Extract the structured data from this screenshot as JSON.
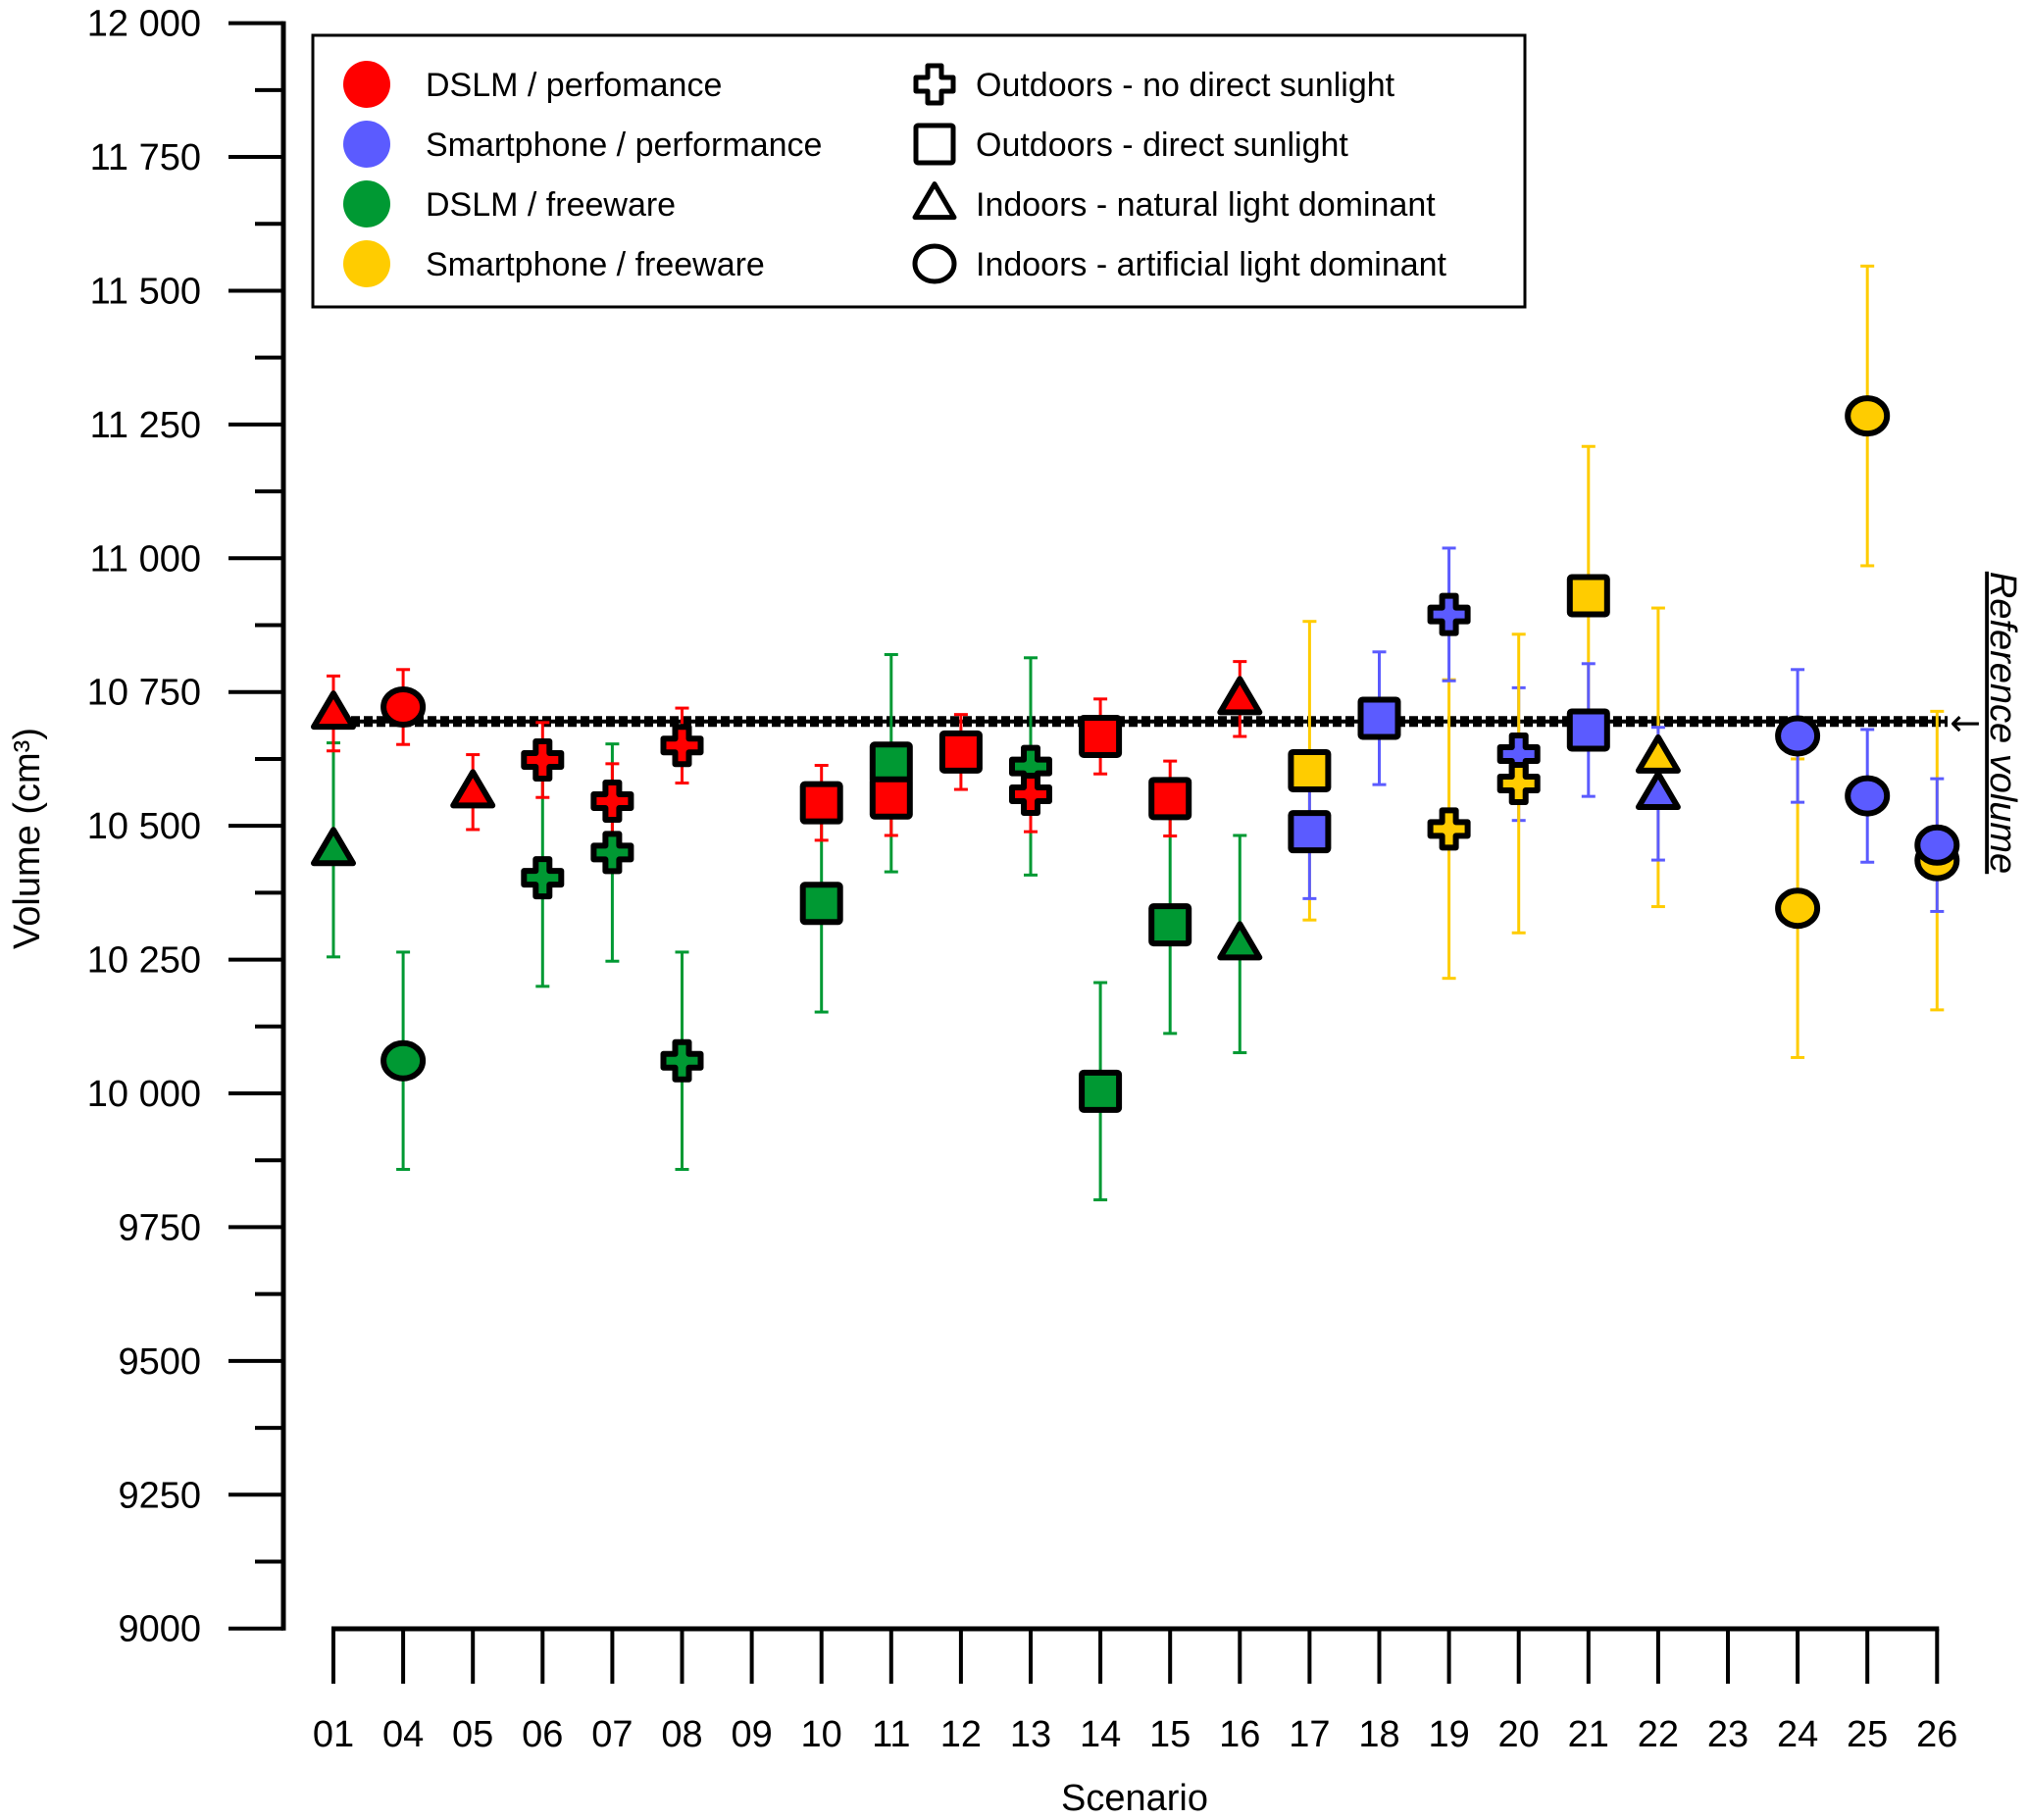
{
  "chart_data": {
    "type": "scatter",
    "subtype": "categorical scatter with error bars",
    "title": "",
    "xlabel": "Scenario",
    "ylabel": "Volume (cm³)",
    "ylim": [
      9000,
      12000
    ],
    "y_major_step": 250,
    "y_minor_step": 125,
    "grid": false,
    "categories": [
      "01",
      "04",
      "05",
      "06",
      "07",
      "08",
      "09",
      "10",
      "11",
      "12",
      "13",
      "14",
      "15",
      "16",
      "17",
      "18",
      "19",
      "20",
      "21",
      "22",
      "23",
      "24",
      "25",
      "26"
    ],
    "y_ticks": [
      {
        "value": 12000,
        "label": "12 000"
      },
      {
        "value": 11750,
        "label": "11 750"
      },
      {
        "value": 11500,
        "label": "11 500"
      },
      {
        "value": 11250,
        "label": "11 250"
      },
      {
        "value": 11000,
        "label": "11 000"
      },
      {
        "value": 10750,
        "label": "10 750"
      },
      {
        "value": 10500,
        "label": "10 500"
      },
      {
        "value": 10250,
        "label": "10 250"
      },
      {
        "value": 10000,
        "label": "10 000"
      },
      {
        "value": 9750,
        "label": "9750"
      },
      {
        "value": 9500,
        "label": "9500"
      },
      {
        "value": 9250,
        "label": "9250"
      },
      {
        "value": 9000,
        "label": "9000"
      }
    ],
    "reference": {
      "value": 10695,
      "label": "Reference volume",
      "arrow": "←"
    },
    "groups": [
      {
        "id": "dslm_perf",
        "label": "DSLM / perfomance",
        "color": "#FF0000"
      },
      {
        "id": "smart_perf",
        "label": "Smartphone / performance",
        "color": "#5B5BFF"
      },
      {
        "id": "dslm_free",
        "label": "DSLM / freeware",
        "color": "#009933"
      },
      {
        "id": "smart_free",
        "label": "Smartphone / freeware",
        "color": "#FFCC00"
      }
    ],
    "conditions": [
      {
        "id": "cross",
        "label": "Outdoors - no direct sunlight"
      },
      {
        "id": "square",
        "label": "Outdoors - direct sunlight"
      },
      {
        "id": "triangle",
        "label": "Indoors - natural light dominant"
      },
      {
        "id": "circle",
        "label": "Indoors - artificial light dominant"
      }
    ],
    "legend_position": "top-left",
    "points": [
      {
        "scenario": "01",
        "group": "dslm_free",
        "shape": "triangle",
        "value": 10455,
        "error": 200
      },
      {
        "scenario": "01",
        "group": "dslm_perf",
        "shape": "triangle",
        "value": 10710,
        "error": 70
      },
      {
        "scenario": "04",
        "group": "dslm_free",
        "shape": "circle",
        "value": 10061,
        "error": 203
      },
      {
        "scenario": "04",
        "group": "dslm_perf",
        "shape": "circle",
        "value": 10722,
        "error": 70
      },
      {
        "scenario": "05",
        "group": "dslm_perf",
        "shape": "triangle",
        "value": 10563,
        "error": 70
      },
      {
        "scenario": "06",
        "group": "dslm_free",
        "shape": "cross",
        "value": 10403,
        "error": 203
      },
      {
        "scenario": "06",
        "group": "dslm_perf",
        "shape": "cross",
        "value": 10623,
        "error": 70
      },
      {
        "scenario": "07",
        "group": "dslm_free",
        "shape": "cross",
        "value": 10450,
        "error": 203
      },
      {
        "scenario": "07",
        "group": "dslm_perf",
        "shape": "cross",
        "value": 10546,
        "error": 70
      },
      {
        "scenario": "08",
        "group": "dslm_free",
        "shape": "cross",
        "value": 10061,
        "error": 203
      },
      {
        "scenario": "08",
        "group": "dslm_perf",
        "shape": "cross",
        "value": 10650,
        "error": 70
      },
      {
        "scenario": "10",
        "group": "dslm_free",
        "shape": "square",
        "value": 10355,
        "error": 203
      },
      {
        "scenario": "10",
        "group": "dslm_perf",
        "shape": "square",
        "value": 10543,
        "error": 70
      },
      {
        "scenario": "11",
        "group": "dslm_free",
        "shape": "square",
        "value": 10617,
        "error": 203
      },
      {
        "scenario": "11",
        "group": "dslm_perf",
        "shape": "square",
        "value": 10552,
        "error": 70
      },
      {
        "scenario": "12",
        "group": "dslm_perf",
        "shape": "square",
        "value": 10638,
        "error": 70
      },
      {
        "scenario": "13",
        "group": "dslm_free",
        "shape": "cross",
        "value": 10611,
        "error": 203
      },
      {
        "scenario": "13",
        "group": "dslm_perf",
        "shape": "cross",
        "value": 10559,
        "error": 70
      },
      {
        "scenario": "14",
        "group": "dslm_free",
        "shape": "square",
        "value": 10004,
        "error": 203
      },
      {
        "scenario": "14",
        "group": "dslm_perf",
        "shape": "square",
        "value": 10667,
        "error": 70
      },
      {
        "scenario": "15",
        "group": "dslm_free",
        "shape": "square",
        "value": 10315,
        "error": 203
      },
      {
        "scenario": "15",
        "group": "dslm_perf",
        "shape": "square",
        "value": 10551,
        "error": 70
      },
      {
        "scenario": "16",
        "group": "dslm_free",
        "shape": "triangle",
        "value": 10279,
        "error": 203
      },
      {
        "scenario": "16",
        "group": "dslm_perf",
        "shape": "triangle",
        "value": 10737,
        "error": 70
      },
      {
        "scenario": "17",
        "group": "smart_free",
        "shape": "square",
        "value": 10603,
        "error": 279
      },
      {
        "scenario": "17",
        "group": "smart_perf",
        "shape": "square",
        "value": 10489,
        "error": 125
      },
      {
        "scenario": "18",
        "group": "smart_perf",
        "shape": "square",
        "value": 10701,
        "error": 124
      },
      {
        "scenario": "19",
        "group": "smart_free",
        "shape": "cross",
        "value": 10494,
        "error": 279
      },
      {
        "scenario": "19",
        "group": "smart_perf",
        "shape": "cross",
        "value": 10895,
        "error": 124
      },
      {
        "scenario": "20",
        "group": "smart_perf",
        "shape": "cross",
        "value": 10634,
        "error": 124
      },
      {
        "scenario": "20",
        "group": "smart_free",
        "shape": "cross",
        "value": 10579,
        "error": 279
      },
      {
        "scenario": "21",
        "group": "smart_free",
        "shape": "square",
        "value": 10930,
        "error": 279
      },
      {
        "scenario": "21",
        "group": "smart_perf",
        "shape": "square",
        "value": 10679,
        "error": 124
      },
      {
        "scenario": "22",
        "group": "smart_free",
        "shape": "triangle",
        "value": 10628,
        "error": 279
      },
      {
        "scenario": "22",
        "group": "smart_perf",
        "shape": "triangle",
        "value": 10560,
        "error": 124
      },
      {
        "scenario": "24",
        "group": "smart_free",
        "shape": "circle",
        "value": 10346,
        "error": 279
      },
      {
        "scenario": "24",
        "group": "smart_perf",
        "shape": "circle",
        "value": 10668,
        "error": 124
      },
      {
        "scenario": "25",
        "group": "smart_free",
        "shape": "circle",
        "value": 11266,
        "error": 280
      },
      {
        "scenario": "25",
        "group": "smart_perf",
        "shape": "circle",
        "value": 10556,
        "error": 124
      },
      {
        "scenario": "26",
        "group": "smart_free",
        "shape": "circle",
        "value": 10435,
        "error": 279
      },
      {
        "scenario": "26",
        "group": "smart_perf",
        "shape": "circle",
        "value": 10464,
        "error": 124
      }
    ]
  },
  "icons": {
    "cross": "cross-marker-icon",
    "square": "square-marker-icon",
    "triangle": "triangle-marker-icon",
    "circle": "circle-marker-icon"
  }
}
